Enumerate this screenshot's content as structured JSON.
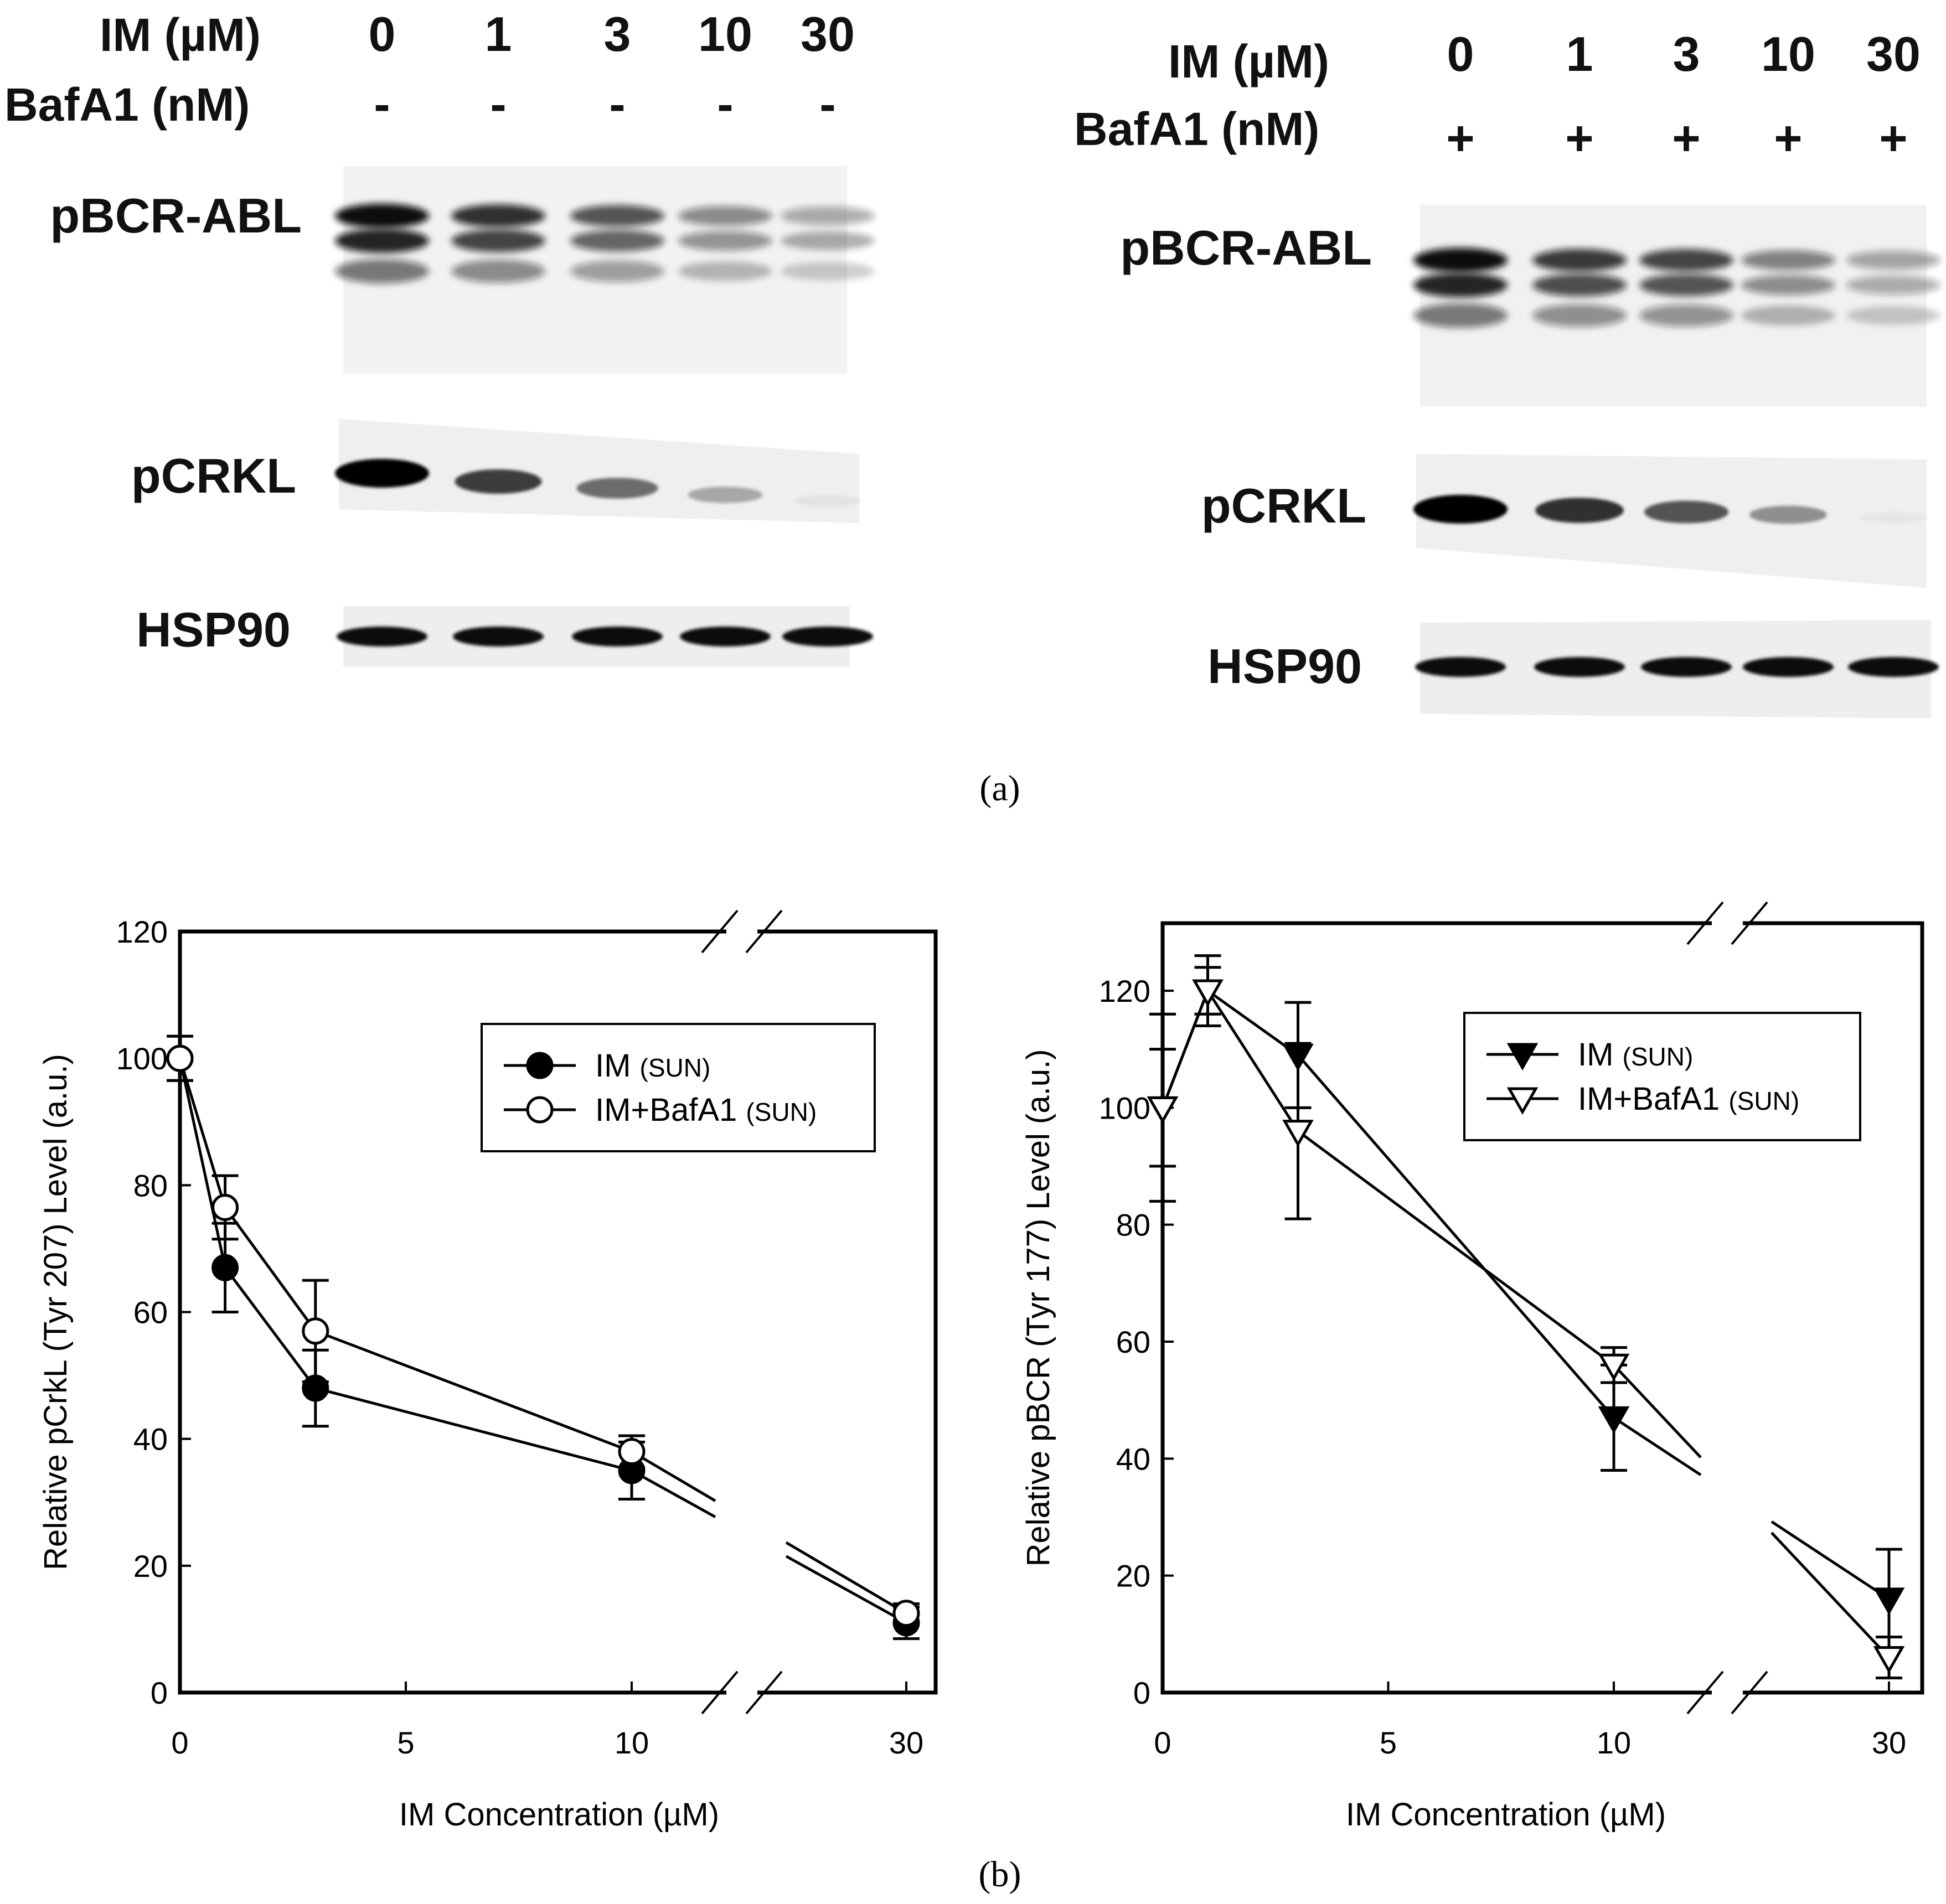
{
  "panel_a": {
    "label": "(a)",
    "blots": [
      {
        "header": {
          "im_label": "IM (µM)",
          "baf_label": "BafA1 (nM)"
        },
        "concentrations": [
          "0",
          "1",
          "3",
          "10",
          "30"
        ],
        "baf_marks": [
          "-",
          "-",
          "-",
          "-",
          "-"
        ],
        "proteins": [
          "pBCR-ABL",
          "pCRKL",
          "HSP90"
        ],
        "band_levels": {
          "pBCR-ABL": [
            1.0,
            0.8,
            0.6,
            0.3,
            0.12
          ],
          "pCRKL": [
            1.0,
            0.75,
            0.55,
            0.3,
            0.05
          ],
          "HSP90": [
            1.0,
            1.0,
            1.0,
            1.0,
            1.0
          ]
        }
      },
      {
        "header": {
          "im_label": "IM (µM)",
          "baf_label": "BafA1 (nM)"
        },
        "concentrations": [
          "0",
          "1",
          "3",
          "10",
          "30"
        ],
        "baf_marks": [
          "+",
          "+",
          "+",
          "+",
          "+"
        ],
        "proteins": [
          "pBCR-ABL",
          "pCRKL",
          "HSP90"
        ],
        "band_levels": {
          "pBCR-ABL": [
            1.0,
            0.75,
            0.7,
            0.35,
            0.15
          ],
          "pCRKL": [
            1.0,
            0.8,
            0.65,
            0.4,
            0.0
          ],
          "HSP90": [
            1.0,
            1.0,
            1.0,
            1.0,
            1.0
          ]
        }
      }
    ]
  },
  "panel_b": {
    "label": "(b)"
  },
  "chart_data": [
    {
      "type": "line",
      "xlabel": "IM Concentration (µM)",
      "ylabel": "Relative pCrkL (Tyr 207) Level (a.u.)",
      "ylim": [
        0,
        120
      ],
      "yticks": [
        0,
        20,
        40,
        60,
        80,
        100,
        120
      ],
      "xticks": [
        "0",
        "5",
        "10",
        "30"
      ],
      "x_axis_break": "between 10 and 30",
      "x": [
        0,
        1,
        3,
        10,
        30
      ],
      "series": [
        {
          "name": "IM",
          "name_suffix": "(SUN)",
          "marker": "filled-circle",
          "values": [
            100,
            67,
            48,
            35,
            11
          ],
          "errors": [
            3.5,
            7,
            6,
            4.5,
            2.5
          ]
        },
        {
          "name": "IM+BafA1",
          "name_suffix": "(SUN)",
          "marker": "open-circle",
          "values": [
            100,
            76.5,
            57,
            38,
            12.5
          ],
          "errors": [
            3.5,
            5,
            8,
            2.5,
            1.5
          ]
        }
      ],
      "legend_position": "upper-right"
    },
    {
      "type": "line",
      "xlabel": "IM Concentration (µM)",
      "ylabel": "Relative pBCR (Tyr 177) Level (a.u.)",
      "ylim": [
        0,
        120
      ],
      "yticks": [
        0,
        20,
        40,
        60,
        80,
        100,
        120
      ],
      "xticks": [
        "0",
        "5",
        "10",
        "30"
      ],
      "x_axis_break": "between 10 and 30",
      "x": [
        0,
        1,
        3,
        10,
        30
      ],
      "series": [
        {
          "name": "IM",
          "name_suffix": "(SUN)",
          "marker": "filled-triangle-down",
          "values": [
            100,
            120,
            109,
            47,
            16
          ],
          "errors": [
            16,
            6,
            9,
            9,
            8.5
          ]
        },
        {
          "name": "IM+BafA1",
          "name_suffix": "(SUN)",
          "marker": "open-triangle-down",
          "values": [
            100,
            120,
            96,
            56,
            6
          ],
          "errors": [
            10,
            4,
            15,
            3,
            3.5
          ]
        }
      ],
      "legend_position": "upper-right"
    }
  ]
}
